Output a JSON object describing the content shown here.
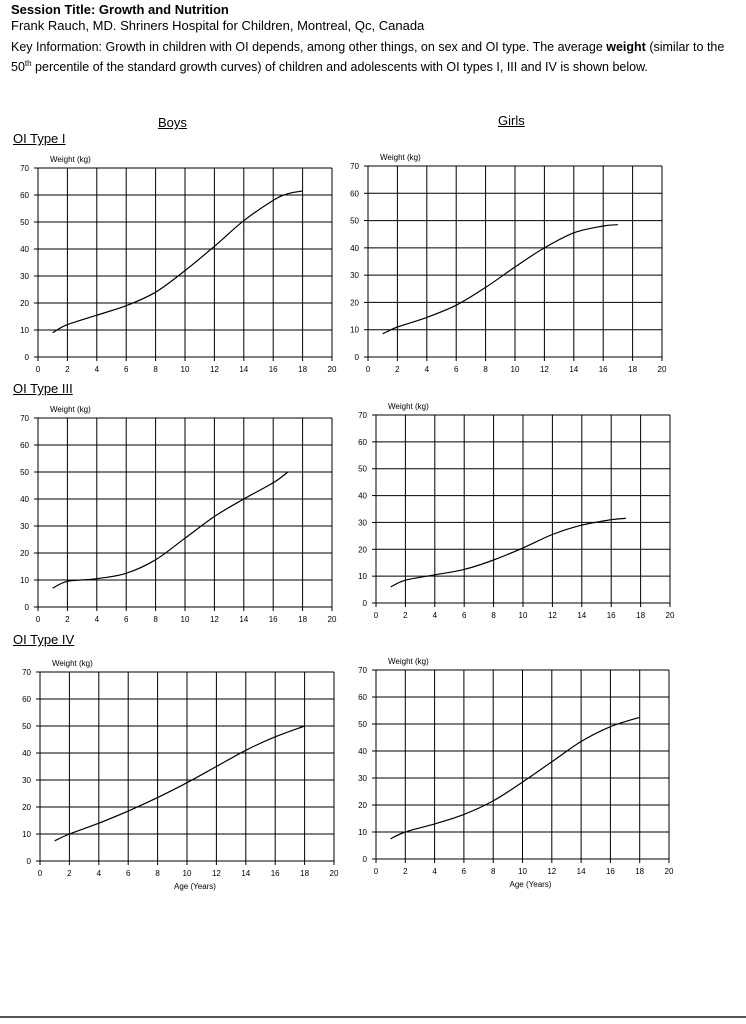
{
  "header": {
    "session_title": "Session Title: Growth and Nutrition",
    "author": "Frank Rauch, MD. Shriners Hospital for Children, Montreal, Qc, Canada",
    "key_pre": "Key Information: Growth in children with OI depends, among other things, on sex and OI type. The average ",
    "key_bold": "weight",
    "key_mid": " (similar to the 50",
    "key_sup": "th",
    "key_post": " percentile of the standard growth curves) of children and adolescents with OI types I, III and IV is shown below."
  },
  "columns": {
    "boys": "Boys",
    "girls": "Girls"
  },
  "rows": {
    "type1": "OI Type I",
    "type3": "OI Type III",
    "type4": "OI Type IV"
  },
  "chart_data": [
    {
      "type": "line",
      "group": "OI Type I",
      "sex": "Boys",
      "ylabel": "Weight (kg)",
      "xlabel": "",
      "xlim": [
        0,
        20
      ],
      "ylim": [
        0,
        70
      ],
      "grid": true,
      "xticks": [
        0,
        2,
        4,
        6,
        8,
        10,
        12,
        14,
        16,
        18,
        20
      ],
      "yticks": [
        0,
        10,
        20,
        30,
        40,
        50,
        60,
        70
      ],
      "series": [
        {
          "x": [
            1,
            2,
            4,
            6,
            8,
            10,
            12,
            14,
            16,
            17,
            18
          ],
          "y": [
            9,
            12,
            15.5,
            19,
            24,
            32,
            41,
            50.5,
            58,
            60.5,
            61.5
          ]
        }
      ]
    },
    {
      "type": "line",
      "group": "OI Type I",
      "sex": "Girls",
      "ylabel": "Weight (kg)",
      "xlabel": "",
      "xlim": [
        0,
        20
      ],
      "ylim": [
        0,
        70
      ],
      "grid": true,
      "xticks": [
        0,
        2,
        4,
        6,
        8,
        10,
        12,
        14,
        16,
        18,
        20
      ],
      "yticks": [
        0,
        10,
        20,
        30,
        40,
        50,
        60,
        70
      ],
      "series": [
        {
          "x": [
            1,
            2,
            4,
            6,
            8,
            10,
            12,
            14,
            16,
            17
          ],
          "y": [
            8.5,
            11,
            14.5,
            19,
            25.5,
            33,
            40,
            45.5,
            48,
            48.5
          ]
        }
      ]
    },
    {
      "type": "line",
      "group": "OI Type III",
      "sex": "Boys",
      "ylabel": "Weight (kg)",
      "xlabel": "",
      "xlim": [
        0,
        20
      ],
      "ylim": [
        0,
        70
      ],
      "grid": true,
      "xticks": [
        0,
        2,
        4,
        6,
        8,
        10,
        12,
        14,
        16,
        18,
        20
      ],
      "yticks": [
        0,
        10,
        20,
        30,
        40,
        50,
        60,
        70
      ],
      "series": [
        {
          "x": [
            1,
            2,
            4,
            6,
            8,
            10,
            12,
            14,
            16,
            17
          ],
          "y": [
            7,
            9.5,
            10.5,
            12.5,
            17.5,
            25.5,
            33.5,
            40,
            46,
            50
          ]
        }
      ]
    },
    {
      "type": "line",
      "group": "OI Type III",
      "sex": "Girls",
      "ylabel": "Weight (kg)",
      "xlabel": "",
      "xlim": [
        0,
        20
      ],
      "ylim": [
        0,
        70
      ],
      "grid": true,
      "xticks": [
        0,
        2,
        4,
        6,
        8,
        10,
        12,
        14,
        16,
        18,
        20
      ],
      "yticks": [
        0,
        10,
        20,
        30,
        40,
        50,
        60,
        70
      ],
      "series": [
        {
          "x": [
            1,
            2,
            4,
            6,
            8,
            10,
            12,
            14,
            16,
            17
          ],
          "y": [
            6,
            8.5,
            10.5,
            12.5,
            16,
            20.5,
            25.5,
            29,
            31,
            31.5
          ]
        }
      ]
    },
    {
      "type": "line",
      "group": "OI Type IV",
      "sex": "Boys",
      "ylabel": "Weight (kg)",
      "xlabel": "Age (Years)",
      "xlim": [
        0,
        20
      ],
      "ylim": [
        0,
        70
      ],
      "grid": true,
      "xticks": [
        0,
        2,
        4,
        6,
        8,
        10,
        12,
        14,
        16,
        18,
        20
      ],
      "yticks": [
        0,
        10,
        20,
        30,
        40,
        50,
        60,
        70
      ],
      "series": [
        {
          "x": [
            1,
            2,
            4,
            6,
            8,
            10,
            12,
            14,
            16,
            18
          ],
          "y": [
            7.5,
            10,
            14,
            18.5,
            23.5,
            29,
            35,
            41,
            46,
            50
          ]
        }
      ]
    },
    {
      "type": "line",
      "group": "OI Type IV",
      "sex": "Girls",
      "ylabel": "Weight (kg)",
      "xlabel": "Age (Years)",
      "xlim": [
        0,
        20
      ],
      "ylim": [
        0,
        70
      ],
      "grid": true,
      "xticks": [
        0,
        2,
        4,
        6,
        8,
        10,
        12,
        14,
        16,
        18,
        20
      ],
      "yticks": [
        0,
        10,
        20,
        30,
        40,
        50,
        60,
        70
      ],
      "series": [
        {
          "x": [
            1,
            2,
            4,
            6,
            8,
            10,
            12,
            14,
            16,
            18
          ],
          "y": [
            7.5,
            10,
            13,
            16.5,
            21.5,
            28.5,
            36,
            43.5,
            49,
            52.5
          ]
        }
      ]
    }
  ]
}
